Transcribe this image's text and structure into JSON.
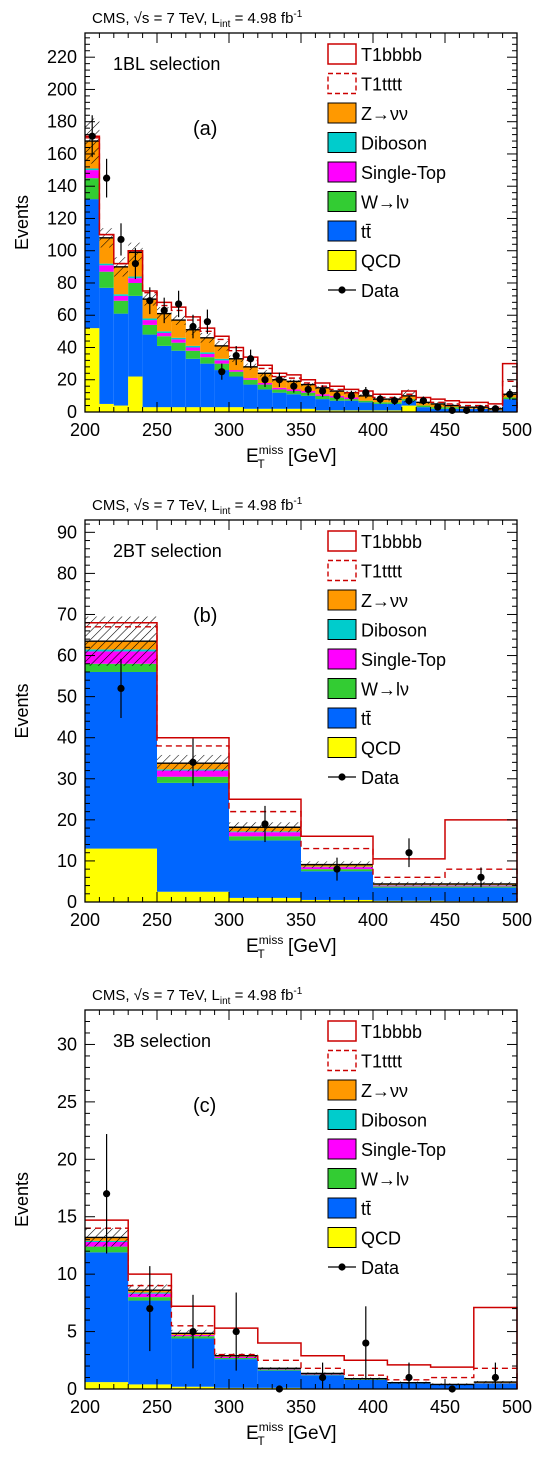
{
  "colors": {
    "T1bbbb": "#cc0000",
    "T1tttt": "#cc0000",
    "Zvv": "#ff9900",
    "Diboson": "#00cccc",
    "SingleTop": "#ff00ff",
    "Wlv": "#33cc33",
    "ttbar": "#0066ff",
    "QCD": "#ffff00",
    "Data": "#000000"
  },
  "legend": [
    {
      "key": "T1bbbb",
      "label": "T1bbbb",
      "style": "sig-solid"
    },
    {
      "key": "T1tttt",
      "label": "T1tttt",
      "style": "sig-dashed"
    },
    {
      "key": "Zvv",
      "label": "Z→νν",
      "style": "fill"
    },
    {
      "key": "Diboson",
      "label": "Diboson",
      "style": "fill"
    },
    {
      "key": "SingleTop",
      "label": "Single-Top",
      "style": "fill"
    },
    {
      "key": "Wlv",
      "label": "W→lν",
      "style": "fill"
    },
    {
      "key": "ttbar",
      "label": "tt̄",
      "style": "fill"
    },
    {
      "key": "QCD",
      "label": "QCD",
      "style": "fill"
    },
    {
      "key": "Data",
      "label": "Data",
      "style": "marker"
    }
  ],
  "chart_data": [
    {
      "type": "bar",
      "header": "CMS, √s = 7 TeV, L",
      "header_sub": "int",
      "header_tail": " = 4.98 fb",
      "header_sup": "-1",
      "selection": "1BL selection",
      "panel": "(a)",
      "xlabel": "E",
      "xlabel_sup": "miss",
      "xlabel_sub": "T",
      "xlabel_unit": " [GeV]",
      "ylabel": "Events",
      "xlim": [
        200,
        500
      ],
      "ylim": [
        0,
        235
      ],
      "xticks": [
        200,
        250,
        300,
        350,
        400,
        450,
        500
      ],
      "yticks": [
        0,
        20,
        40,
        60,
        80,
        100,
        120,
        140,
        160,
        180,
        200,
        220
      ],
      "bin_edges": [
        200,
        210,
        220,
        230,
        240,
        250,
        260,
        270,
        280,
        290,
        300,
        310,
        320,
        330,
        340,
        350,
        360,
        370,
        380,
        390,
        400,
        410,
        420,
        430,
        440,
        450,
        460,
        470,
        480,
        490,
        500
      ],
      "stack": {
        "QCD": [
          52,
          5,
          4,
          22,
          3,
          3,
          3,
          3,
          3,
          3,
          3,
          2,
          2,
          2,
          2,
          2,
          1,
          1,
          1,
          1,
          1,
          1,
          4,
          0,
          0,
          0,
          0,
          0,
          0,
          0
        ],
        "ttbar": [
          80,
          72,
          57,
          50,
          45,
          38,
          35,
          30,
          27,
          23,
          19,
          15,
          12,
          10,
          9,
          8,
          7,
          6,
          6,
          5,
          4,
          4,
          3,
          3,
          2,
          2,
          2,
          2,
          1,
          8
        ],
        "Wlv": [
          13,
          10,
          8,
          8,
          6,
          6,
          5,
          5,
          4,
          4,
          3,
          3,
          3,
          2,
          2,
          2,
          2,
          2,
          1,
          1,
          1,
          1,
          1,
          1,
          1,
          1,
          0,
          0,
          0,
          1
        ],
        "SingleTop": [
          5,
          4,
          3,
          3,
          3,
          2,
          2,
          2,
          2,
          2,
          1,
          1,
          1,
          1,
          1,
          1,
          1,
          1,
          1,
          0,
          0,
          0,
          0,
          0,
          0,
          0,
          0,
          0,
          0,
          0
        ],
        "Diboson": [
          1,
          1,
          1,
          1,
          1,
          1,
          1,
          1,
          1,
          1,
          0,
          0,
          0,
          0,
          0,
          0,
          0,
          0,
          0,
          0,
          0,
          0,
          0,
          0,
          0,
          0,
          0,
          0,
          0,
          0
        ],
        "Zvv": [
          17,
          16,
          17,
          15,
          12,
          11,
          11,
          10,
          9,
          8,
          7,
          7,
          6,
          5,
          5,
          4,
          4,
          3,
          3,
          3,
          2,
          2,
          2,
          2,
          2,
          1,
          1,
          1,
          1,
          2
        ]
      },
      "T1tttt": [
        170,
        110,
        92,
        100,
        74,
        66,
        63,
        57,
        50,
        45,
        38,
        32,
        27,
        22,
        21,
        18,
        16,
        14,
        12,
        11,
        9,
        9,
        11,
        7,
        6,
        5,
        4,
        4,
        3,
        19
      ],
      "T1bbbb": [
        171,
        110,
        92,
        100,
        75,
        68,
        65,
        59,
        52,
        47,
        40,
        34,
        29,
        24,
        23,
        20,
        18,
        16,
        14,
        13,
        11,
        11,
        13,
        9,
        8,
        7,
        6,
        6,
        5,
        30
      ],
      "data_x": [
        205,
        215,
        225,
        235,
        245,
        255,
        265,
        275,
        285,
        295,
        305,
        315,
        325,
        335,
        345,
        355,
        365,
        375,
        385,
        395,
        405,
        415,
        425,
        435,
        445,
        455,
        465,
        475,
        485,
        495
      ],
      "data_y": [
        171,
        145,
        107,
        92,
        69,
        63,
        67,
        53,
        56,
        25,
        35,
        33,
        20,
        20,
        16,
        14,
        13,
        10,
        10,
        12,
        8,
        7,
        7,
        7,
        3,
        1,
        1,
        2,
        2,
        11
      ],
      "data_err": [
        13,
        12,
        10,
        9.6,
        8.3,
        7.9,
        8.2,
        7.3,
        7.5,
        5,
        5.9,
        5.7,
        4.5,
        4.5,
        4,
        3.7,
        3.6,
        3.2,
        3.2,
        3.5,
        2.8,
        2.6,
        2.6,
        2.6,
        1.7,
        1,
        1,
        1.4,
        1.4,
        3.3
      ],
      "syst": [
        14,
        6,
        6,
        6,
        4,
        4,
        3,
        3,
        3,
        3,
        2,
        2,
        2,
        2,
        1,
        1,
        1,
        1,
        1,
        1,
        1,
        1,
        4,
        1,
        1,
        1,
        1,
        1,
        1,
        2
      ]
    },
    {
      "type": "bar",
      "header": "CMS, √s = 7 TeV, L",
      "header_sub": "int",
      "header_tail": " = 4.98 fb",
      "header_sup": "-1",
      "selection": "2BT selection",
      "panel": "(b)",
      "xlabel": "E",
      "xlabel_sup": "miss",
      "xlabel_sub": "T",
      "xlabel_unit": " [GeV]",
      "ylabel": "Events",
      "xlim": [
        200,
        500
      ],
      "ylim": [
        0,
        93
      ],
      "xticks": [
        200,
        250,
        300,
        350,
        400,
        450,
        500
      ],
      "yticks": [
        0,
        10,
        20,
        30,
        40,
        50,
        60,
        70,
        80,
        90
      ],
      "bin_edges": [
        200,
        250,
        300,
        350,
        400,
        450,
        500
      ],
      "stack": {
        "QCD": [
          13,
          2.5,
          1,
          0.5,
          0.3,
          0.2
        ],
        "ttbar": [
          43,
          26.5,
          14,
          7,
          3.2,
          3.3
        ],
        "Wlv": [
          2,
          1.5,
          1,
          0.5,
          0.3,
          0.3
        ],
        "SingleTop": [
          3,
          1.5,
          1,
          0.5,
          0.2,
          0.2
        ],
        "Diboson": [
          0.5,
          0.3,
          0.2,
          0.1,
          0.1,
          0.1
        ],
        "Zvv": [
          2,
          1.5,
          1,
          0.5,
          0.3,
          0.3
        ]
      },
      "T1tttt": [
        67,
        38,
        22,
        13,
        6,
        8
      ],
      "T1bbbb": [
        68,
        40,
        25,
        16,
        10.5,
        20
      ],
      "data_x": [
        225,
        275,
        325,
        375,
        425,
        475
      ],
      "data_y": [
        52,
        34,
        19,
        8,
        12,
        6
      ],
      "data_err": [
        7.2,
        5.8,
        4.4,
        2.8,
        3.5,
        2.4
      ],
      "syst": [
        6,
        2,
        1.2,
        0.8,
        0.5,
        0.5
      ]
    },
    {
      "type": "bar",
      "header": "CMS, √s = 7 TeV, L",
      "header_sub": "int",
      "header_tail": " = 4.98 fb",
      "header_sup": "-1",
      "selection": "3B selection",
      "panel": "(c)",
      "xlabel": "E",
      "xlabel_sup": "miss",
      "xlabel_sub": "T",
      "xlabel_unit": " [GeV]",
      "ylabel": "Events",
      "xlim": [
        200,
        500
      ],
      "ylim": [
        0,
        33
      ],
      "xticks": [
        200,
        250,
        300,
        350,
        400,
        450,
        500
      ],
      "yticks": [
        0,
        5,
        10,
        15,
        20,
        25,
        30
      ],
      "bin_edges": [
        200,
        230,
        260,
        290,
        320,
        350,
        380,
        410,
        440,
        470,
        500
      ],
      "stack": {
        "QCD": [
          0.6,
          0.4,
          0.2,
          0.1,
          0.1,
          0,
          0,
          0,
          0,
          0
        ],
        "ttbar": [
          11.3,
          7.3,
          4.2,
          2.5,
          1.5,
          1.2,
          0.8,
          0.5,
          0.4,
          0.5
        ],
        "Wlv": [
          0.5,
          0.3,
          0.2,
          0.1,
          0.1,
          0.05,
          0.05,
          0.05,
          0,
          0
        ],
        "SingleTop": [
          0.4,
          0.3,
          0.1,
          0.1,
          0.05,
          0.05,
          0,
          0,
          0,
          0
        ],
        "Diboson": [
          0.1,
          0.1,
          0,
          0,
          0,
          0,
          0,
          0,
          0,
          0
        ],
        "Zvv": [
          0.3,
          0.2,
          0.15,
          0.1,
          0.05,
          0.05,
          0.05,
          0,
          0,
          0.1
        ]
      },
      "T1tttt": [
        14,
        9,
        5.5,
        3,
        2.5,
        1.8,
        1.2,
        0.8,
        1,
        1.8
      ],
      "T1bbbb": [
        14.7,
        10,
        7.2,
        5.3,
        4,
        2.9,
        2.5,
        2.1,
        1.9,
        7.1
      ],
      "data_x": [
        215,
        245,
        275,
        305,
        335,
        365,
        395,
        425,
        455,
        485
      ],
      "data_y": [
        17,
        7,
        5,
        5,
        0,
        1,
        4,
        1,
        0,
        1
      ],
      "data_err": [
        5.2,
        3.7,
        3.2,
        3.4,
        0,
        1.3,
        3.2,
        1.3,
        0,
        1.3
      ],
      "syst": [
        0.8,
        0.5,
        0.3,
        0.2,
        0.1,
        0.1,
        0.1,
        0.1,
        0.1,
        0.1
      ]
    }
  ]
}
